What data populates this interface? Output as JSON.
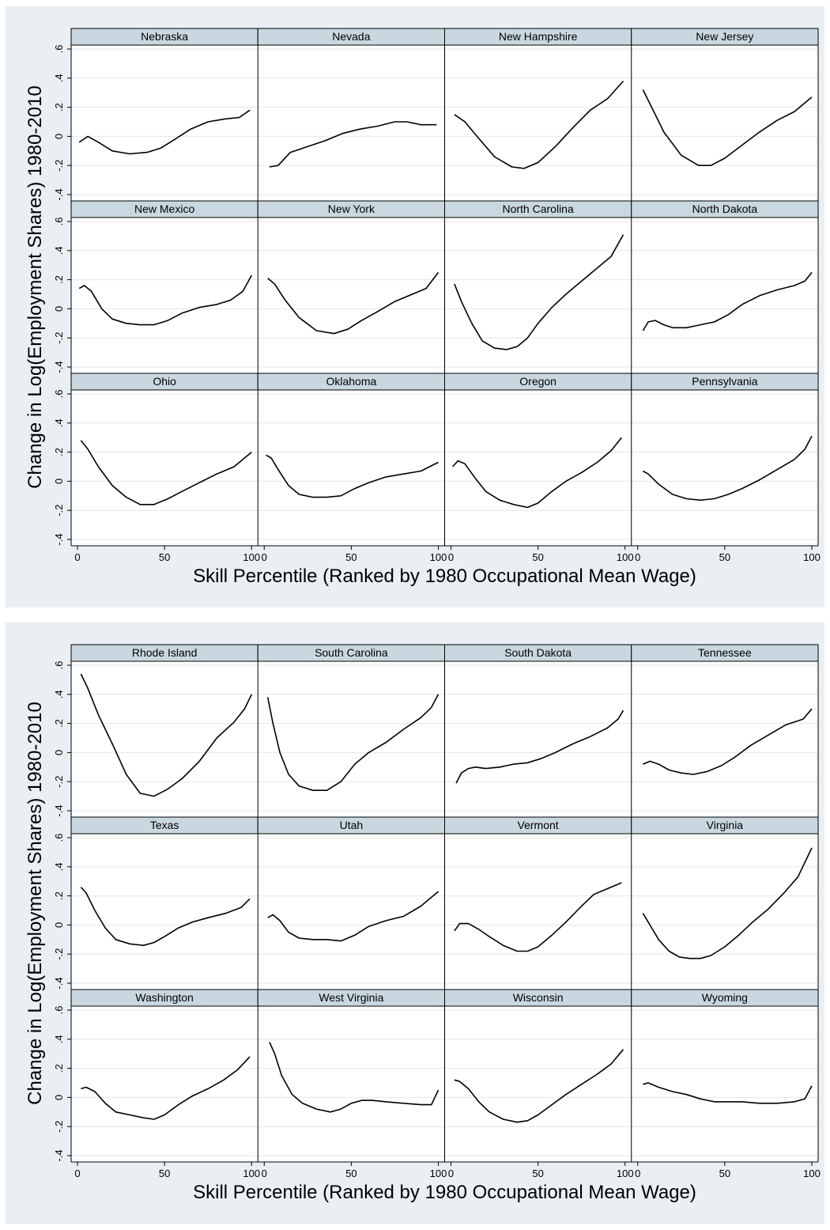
{
  "figures": [
    {
      "ylabel": "Change in Log(Employment Shares) 1980-2010",
      "xlabel": "Skill Percentile (Ranked by 1980 Occupational Mean Wage)"
    },
    {
      "ylabel": "Change in Log(Employment Shares) 1980-2010",
      "xlabel": "Skill Percentile (Ranked by 1980 Occupational Mean Wage)"
    }
  ],
  "colors": {
    "outer_bg": "#E9EFF3",
    "plot_bg": "#FFFFFF",
    "strip_bg": "#C9D8E0",
    "line": "#000000",
    "grid": "#E6E6E6"
  },
  "chart_data": [
    {
      "type": "line",
      "xlim": [
        0,
        100
      ],
      "ylim": [
        -0.4,
        0.6
      ],
      "x_ticks": [
        "0",
        "50",
        "100"
      ],
      "y_ticks": [
        "-.4",
        "-.2",
        "0",
        ".2",
        ".4",
        ".6"
      ],
      "grid": true,
      "layout": "4 columns x 3 rows small multiples",
      "panels": [
        {
          "title": "Nebraska",
          "x": [
            1,
            6,
            12,
            20,
            30,
            40,
            48,
            56,
            65,
            75,
            85,
            93,
            99
          ],
          "y": [
            -0.04,
            0.0,
            -0.04,
            -0.1,
            -0.12,
            -0.11,
            -0.08,
            -0.02,
            0.05,
            0.1,
            0.12,
            0.13,
            0.18
          ]
        },
        {
          "title": "Nevada",
          "x": [
            3,
            8,
            15,
            25,
            35,
            45,
            55,
            65,
            75,
            82,
            90,
            99
          ],
          "y": [
            -0.21,
            -0.2,
            -0.11,
            -0.07,
            -0.03,
            0.02,
            0.05,
            0.07,
            0.1,
            0.1,
            0.08,
            0.08
          ]
        },
        {
          "title": "New Hampshire",
          "x": [
            2,
            8,
            15,
            25,
            35,
            42,
            50,
            60,
            70,
            80,
            90,
            99
          ],
          "y": [
            0.15,
            0.1,
            0.0,
            -0.14,
            -0.21,
            -0.22,
            -0.18,
            -0.07,
            0.06,
            0.18,
            0.26,
            0.38
          ]
        },
        {
          "title": "New Jersey",
          "x": [
            3,
            8,
            15,
            25,
            35,
            42,
            50,
            60,
            70,
            80,
            90,
            100
          ],
          "y": [
            0.32,
            0.2,
            0.03,
            -0.13,
            -0.2,
            -0.2,
            -0.15,
            -0.06,
            0.03,
            0.11,
            0.17,
            0.27
          ]
        },
        {
          "title": "New Mexico",
          "x": [
            1,
            4,
            8,
            14,
            20,
            28,
            36,
            44,
            52,
            60,
            70,
            80,
            88,
            95,
            100
          ],
          "y": [
            0.14,
            0.16,
            0.12,
            0.0,
            -0.07,
            -0.1,
            -0.11,
            -0.11,
            -0.08,
            -0.03,
            0.01,
            0.03,
            0.06,
            0.12,
            0.23
          ]
        },
        {
          "title": "New York",
          "x": [
            2,
            6,
            12,
            20,
            30,
            40,
            48,
            56,
            65,
            75,
            85,
            93,
            100
          ],
          "y": [
            0.21,
            0.17,
            0.06,
            -0.06,
            -0.15,
            -0.17,
            -0.14,
            -0.08,
            -0.02,
            0.05,
            0.1,
            0.14,
            0.25
          ]
        },
        {
          "title": "North Carolina",
          "x": [
            2,
            6,
            12,
            18,
            25,
            32,
            38,
            44,
            50,
            58,
            66,
            75,
            84,
            92,
            99
          ],
          "y": [
            0.17,
            0.05,
            -0.1,
            -0.22,
            -0.27,
            -0.28,
            -0.26,
            -0.2,
            -0.1,
            0.01,
            0.1,
            0.19,
            0.28,
            0.36,
            0.51
          ]
        },
        {
          "title": "North Dakota",
          "x": [
            3,
            6,
            10,
            15,
            20,
            28,
            36,
            44,
            52,
            60,
            70,
            80,
            90,
            96,
            100
          ],
          "y": [
            -0.15,
            -0.09,
            -0.08,
            -0.11,
            -0.13,
            -0.13,
            -0.11,
            -0.09,
            -0.04,
            0.03,
            0.09,
            0.13,
            0.16,
            0.19,
            0.25
          ]
        },
        {
          "title": "Ohio",
          "x": [
            2,
            6,
            12,
            20,
            28,
            36,
            44,
            52,
            60,
            70,
            80,
            90,
            100
          ],
          "y": [
            0.28,
            0.22,
            0.1,
            -0.03,
            -0.11,
            -0.16,
            -0.16,
            -0.12,
            -0.07,
            -0.01,
            0.05,
            0.1,
            0.2
          ]
        },
        {
          "title": "Oklahoma",
          "x": [
            1,
            4,
            8,
            14,
            20,
            28,
            36,
            44,
            52,
            60,
            70,
            80,
            90,
            100
          ],
          "y": [
            0.18,
            0.16,
            0.08,
            -0.03,
            -0.09,
            -0.11,
            -0.11,
            -0.1,
            -0.05,
            -0.01,
            0.03,
            0.05,
            0.07,
            0.13
          ]
        },
        {
          "title": "Oregon",
          "x": [
            1,
            4,
            8,
            14,
            20,
            28,
            36,
            44,
            50,
            58,
            66,
            75,
            84,
            92,
            98
          ],
          "y": [
            0.1,
            0.14,
            0.12,
            0.02,
            -0.07,
            -0.13,
            -0.16,
            -0.18,
            -0.15,
            -0.07,
            0.0,
            0.06,
            0.13,
            0.21,
            0.3
          ]
        },
        {
          "title": "Pennsylvania",
          "x": [
            3,
            6,
            12,
            20,
            28,
            36,
            44,
            52,
            60,
            70,
            80,
            90,
            96,
            100
          ],
          "y": [
            0.07,
            0.05,
            -0.02,
            -0.09,
            -0.12,
            -0.13,
            -0.12,
            -0.09,
            -0.05,
            0.01,
            0.08,
            0.15,
            0.22,
            0.31
          ]
        }
      ]
    },
    {
      "type": "line",
      "xlim": [
        0,
        100
      ],
      "ylim": [
        -0.4,
        0.6
      ],
      "x_ticks": [
        "0",
        "50",
        "100"
      ],
      "y_ticks": [
        "-.4",
        "-.2",
        "0",
        ".2",
        ".4",
        ".6"
      ],
      "grid": true,
      "layout": "4 columns x 3 rows small multiples",
      "panels": [
        {
          "title": "Rhode Island",
          "x": [
            2,
            6,
            12,
            20,
            28,
            36,
            44,
            52,
            60,
            70,
            80,
            90,
            96,
            100
          ],
          "y": [
            0.54,
            0.44,
            0.26,
            0.06,
            -0.15,
            -0.28,
            -0.3,
            -0.25,
            -0.18,
            -0.06,
            0.1,
            0.21,
            0.3,
            0.4
          ]
        },
        {
          "title": "South Carolina",
          "x": [
            2,
            5,
            9,
            14,
            20,
            28,
            36,
            44,
            52,
            60,
            70,
            80,
            90,
            96,
            100
          ],
          "y": [
            0.38,
            0.2,
            0.0,
            -0.15,
            -0.23,
            -0.26,
            -0.26,
            -0.2,
            -0.08,
            0.0,
            0.07,
            0.16,
            0.24,
            0.31,
            0.4
          ]
        },
        {
          "title": "South Dakota",
          "x": [
            3,
            6,
            10,
            14,
            20,
            28,
            36,
            44,
            52,
            60,
            70,
            80,
            90,
            96,
            99
          ],
          "y": [
            -0.21,
            -0.14,
            -0.11,
            -0.1,
            -0.11,
            -0.1,
            -0.08,
            -0.07,
            -0.04,
            0.0,
            0.06,
            0.11,
            0.17,
            0.23,
            0.29
          ]
        },
        {
          "title": "Tennessee",
          "x": [
            3,
            7,
            12,
            18,
            25,
            32,
            40,
            48,
            56,
            65,
            75,
            85,
            95,
            100
          ],
          "y": [
            -0.08,
            -0.06,
            -0.08,
            -0.12,
            -0.14,
            -0.15,
            -0.13,
            -0.09,
            -0.03,
            0.05,
            0.12,
            0.19,
            0.23,
            0.3
          ]
        },
        {
          "title": "Texas",
          "x": [
            2,
            5,
            10,
            16,
            22,
            30,
            38,
            44,
            50,
            58,
            66,
            75,
            85,
            94,
            99
          ],
          "y": [
            0.26,
            0.22,
            0.1,
            -0.02,
            -0.1,
            -0.13,
            -0.14,
            -0.12,
            -0.08,
            -0.02,
            0.02,
            0.05,
            0.08,
            0.12,
            0.18
          ]
        },
        {
          "title": "Utah",
          "x": [
            2,
            5,
            9,
            14,
            20,
            28,
            36,
            44,
            52,
            60,
            70,
            80,
            90,
            96,
            100
          ],
          "y": [
            0.05,
            0.07,
            0.03,
            -0.05,
            -0.09,
            -0.1,
            -0.1,
            -0.11,
            -0.07,
            -0.01,
            0.03,
            0.06,
            0.13,
            0.19,
            0.23
          ]
        },
        {
          "title": "Vermont",
          "x": [
            2,
            5,
            10,
            16,
            22,
            30,
            38,
            44,
            50,
            58,
            66,
            75,
            82,
            90,
            98
          ],
          "y": [
            -0.04,
            0.01,
            0.01,
            -0.03,
            -0.08,
            -0.14,
            -0.18,
            -0.18,
            -0.15,
            -0.07,
            0.02,
            0.13,
            0.21,
            0.25,
            0.29
          ]
        },
        {
          "title": "Virginia",
          "x": [
            3,
            7,
            12,
            18,
            24,
            30,
            36,
            42,
            50,
            58,
            66,
            75,
            84,
            92,
            100
          ],
          "y": [
            0.08,
            0.0,
            -0.1,
            -0.18,
            -0.22,
            -0.23,
            -0.23,
            -0.21,
            -0.15,
            -0.07,
            0.02,
            0.11,
            0.22,
            0.33,
            0.53
          ]
        },
        {
          "title": "Washington",
          "x": [
            2,
            5,
            10,
            16,
            22,
            30,
            38,
            44,
            50,
            58,
            66,
            75,
            84,
            92,
            99
          ],
          "y": [
            0.06,
            0.07,
            0.04,
            -0.04,
            -0.1,
            -0.12,
            -0.14,
            -0.15,
            -0.12,
            -0.05,
            0.01,
            0.06,
            0.12,
            0.19,
            0.28
          ]
        },
        {
          "title": "West Virginia",
          "x": [
            3,
            6,
            10,
            16,
            22,
            30,
            38,
            44,
            50,
            56,
            62,
            70,
            80,
            90,
            96,
            100
          ],
          "y": [
            0.38,
            0.3,
            0.15,
            0.02,
            -0.04,
            -0.08,
            -0.1,
            -0.08,
            -0.04,
            -0.02,
            -0.02,
            -0.03,
            -0.04,
            -0.05,
            -0.05,
            0.05
          ]
        },
        {
          "title": "Wisconsin",
          "x": [
            2,
            5,
            10,
            16,
            22,
            30,
            38,
            44,
            50,
            58,
            66,
            75,
            84,
            92,
            99
          ],
          "y": [
            0.12,
            0.11,
            0.06,
            -0.03,
            -0.1,
            -0.15,
            -0.17,
            -0.16,
            -0.12,
            -0.05,
            0.02,
            0.09,
            0.16,
            0.23,
            0.33
          ]
        },
        {
          "title": "Wyoming",
          "x": [
            3,
            6,
            12,
            20,
            28,
            36,
            44,
            52,
            60,
            70,
            80,
            90,
            96,
            100
          ],
          "y": [
            0.09,
            0.1,
            0.07,
            0.04,
            0.02,
            -0.01,
            -0.03,
            -0.03,
            -0.03,
            -0.04,
            -0.04,
            -0.03,
            -0.01,
            0.08
          ]
        }
      ]
    }
  ]
}
